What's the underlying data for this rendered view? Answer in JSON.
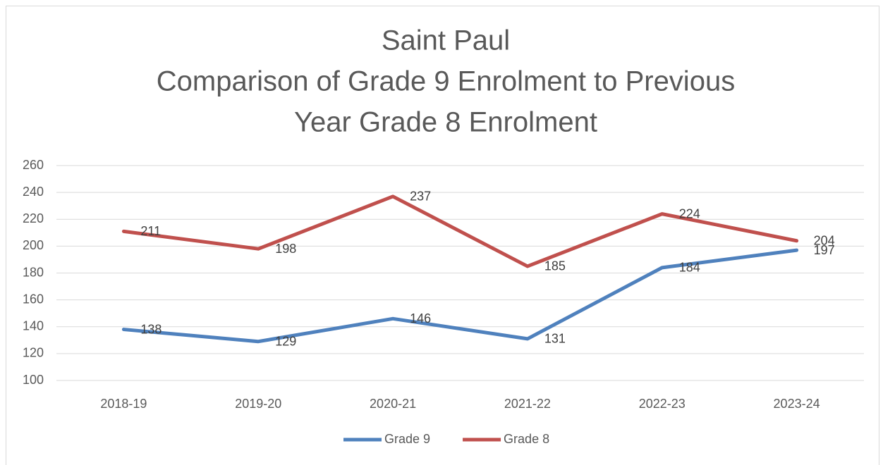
{
  "chart_data": {
    "type": "line",
    "title": [
      "Saint Paul",
      "Comparison of Grade 9 Enrolment to Previous",
      "Year Grade 8 Enrolment"
    ],
    "categories": [
      "2018-19",
      "2019-20",
      "2020-21",
      "2021-22",
      "2022-23",
      "2023-24"
    ],
    "series": [
      {
        "name": "Grade 9",
        "color": "#4f81bd",
        "values": [
          138,
          129,
          146,
          131,
          184,
          197
        ]
      },
      {
        "name": "Grade 8",
        "color": "#c0504d",
        "values": [
          211,
          198,
          237,
          185,
          224,
          204
        ]
      }
    ],
    "ylim": [
      100,
      260
    ],
    "yticks": [
      100,
      120,
      140,
      160,
      180,
      200,
      220,
      240,
      260
    ],
    "grid": true,
    "legend": "bottom",
    "data_labels": true
  }
}
